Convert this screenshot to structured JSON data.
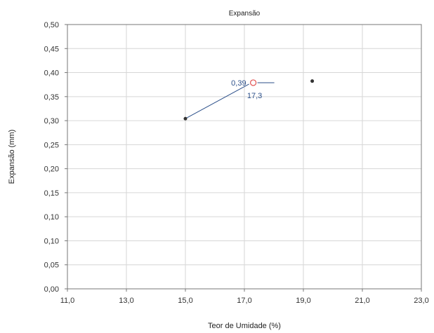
{
  "chart_data": {
    "type": "scatter",
    "title": "Expansão",
    "xlabel": "Teor de Umidade (%)",
    "ylabel": "Expansão (mm)",
    "xlim": [
      11.0,
      23.0
    ],
    "ylim": [
      0.0,
      0.5
    ],
    "x_ticks": [
      "11,0",
      "13,0",
      "15,0",
      "17,0",
      "19,0",
      "21,0",
      "23,0"
    ],
    "y_ticks": [
      "0,00",
      "0,05",
      "0,10",
      "0,10",
      "0,15",
      "0,20",
      "0,25",
      "0,30",
      "0,35",
      "0,40",
      "0,45",
      "0,50"
    ],
    "grid": true,
    "series": [
      {
        "values": [
          {
            "x": 15.0,
            "y": 0.322
          },
          {
            "x": 19.3,
            "y": 0.393
          }
        ],
        "color": "#333333"
      }
    ],
    "optimum_point": {
      "x": 17.3,
      "y": 0.39,
      "color": "#e05050"
    },
    "trend_line_color": "#2b4f8a",
    "annotations": [
      {
        "text": "0,39",
        "anchor": "y"
      },
      {
        "text": "17,3",
        "anchor": "x"
      }
    ]
  }
}
